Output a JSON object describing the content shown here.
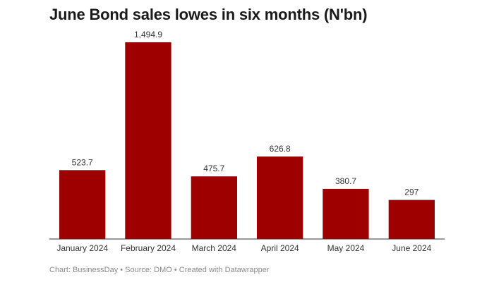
{
  "chart_data": {
    "type": "bar",
    "title": "June Bond sales lowes in six months (N'bn)",
    "categories": [
      "January 2024",
      "February 2024",
      "March 2024",
      "April 2024",
      "May 2024",
      "June 2024"
    ],
    "values": [
      523.7,
      1494.9,
      475.7,
      626.8,
      380.7,
      297
    ],
    "value_labels": [
      "523.7",
      "1,494.9",
      "475.7",
      "626.8",
      "380.7",
      "297"
    ],
    "ylim": [
      0,
      1494.9
    ],
    "grid": false,
    "legend": "none",
    "bar_color": "#9e0000",
    "axis_color": "#333333"
  },
  "footer": "Chart: BusinessDay • Source: DMO • Created with Datawrapper"
}
